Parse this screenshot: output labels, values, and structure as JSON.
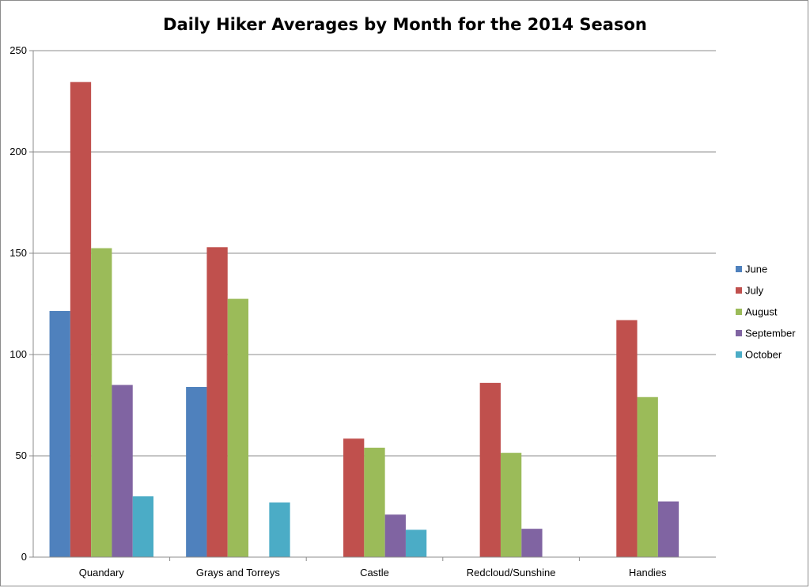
{
  "chart_data": {
    "type": "bar",
    "title": "Daily Hiker Averages by Month for the 2014 Season",
    "xlabel": "",
    "ylabel": "",
    "ylim": [
      0,
      250
    ],
    "yticks": [
      0,
      50,
      100,
      150,
      200,
      250
    ],
    "grid": true,
    "legend_position": "right",
    "categories": [
      "Quandary",
      "Grays and Torreys",
      "Castle",
      "Redcloud/Sunshine",
      "Handies"
    ],
    "series": [
      {
        "name": "June",
        "color": "#4f81bd",
        "values": [
          121.5,
          84,
          null,
          null,
          null
        ]
      },
      {
        "name": "July",
        "color": "#c0504d",
        "values": [
          234.5,
          153,
          58.5,
          86,
          117
        ]
      },
      {
        "name": "August",
        "color": "#9bbb59",
        "values": [
          152.5,
          127.5,
          54,
          51.5,
          79
        ]
      },
      {
        "name": "September",
        "color": "#8064a2",
        "values": [
          85,
          null,
          21,
          14,
          27.5
        ]
      },
      {
        "name": "October",
        "color": "#4bacc6",
        "values": [
          30,
          27,
          13.5,
          null,
          null
        ]
      }
    ]
  }
}
